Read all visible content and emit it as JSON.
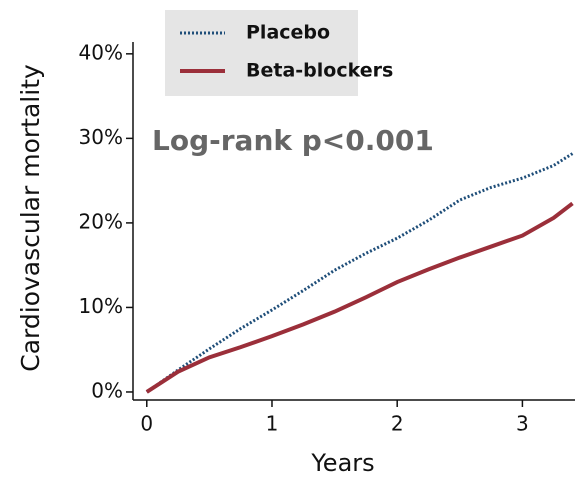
{
  "chart_data": {
    "type": "line",
    "y_label": "Cardiovascular mortality",
    "x_label": "Years",
    "annotation": "Log-rank p<0.001",
    "x": [
      0,
      0.25,
      0.5,
      0.75,
      1,
      1.25,
      1.5,
      1.75,
      2,
      2.25,
      2.5,
      2.75,
      3,
      3.25,
      3.4
    ],
    "series": [
      {
        "name": "Placebo",
        "color": "#1f4e79",
        "style": "dotted",
        "values": [
          0,
          2.6,
          5.1,
          7.5,
          9.7,
          12,
          14.4,
          16.4,
          18.2,
          20.3,
          22.7,
          24.2,
          25.3,
          26.8,
          28.2
        ]
      },
      {
        "name": "Beta-blockers",
        "color": "#9b2f3a",
        "style": "solid",
        "values": [
          0,
          2.4,
          4.1,
          5.3,
          6.6,
          8.0,
          9.5,
          11.2,
          13,
          14.5,
          15.9,
          17.2,
          18.5,
          20.6,
          22.3
        ]
      }
    ],
    "xlim": [
      -0.11,
      3.42
    ],
    "ylim": [
      -0.95,
      41.4
    ],
    "xticks": [
      0,
      1,
      2,
      3
    ],
    "yticks": [
      {
        "value": 0,
        "label": "0%"
      },
      {
        "value": 10,
        "label": "10%"
      },
      {
        "value": 20,
        "label": "20%"
      },
      {
        "value": 30,
        "label": "30%"
      },
      {
        "value": 40,
        "label": "40%"
      }
    ],
    "legend": "top"
  }
}
